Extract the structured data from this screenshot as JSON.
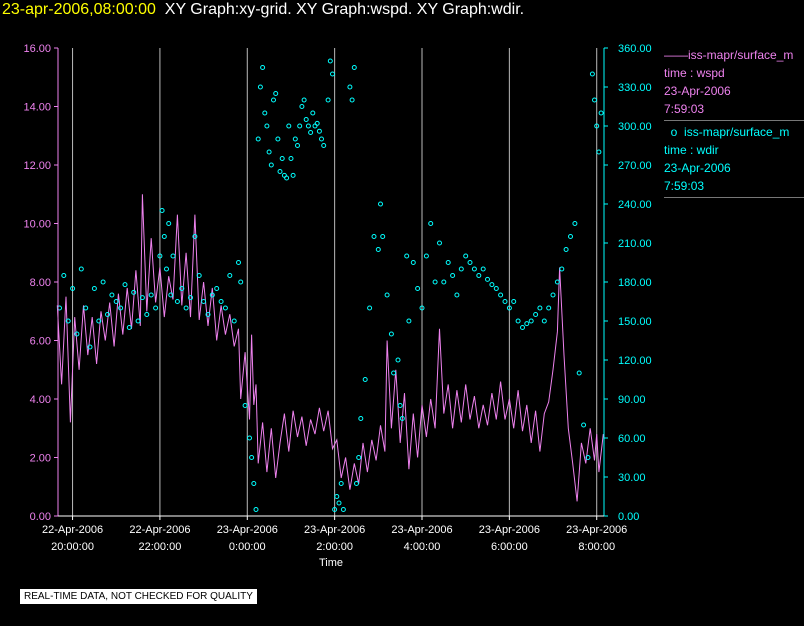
{
  "header": {
    "timestamp": "23-apr-2006,08:00:00",
    "graphs": "XY Graph:xy-grid.  XY Graph:wspd.  XY Graph:wdir."
  },
  "legend": [
    {
      "marker": "——",
      "source": "iss-mapr/surface_m",
      "var_line": "time : wspd",
      "date": "23-Apr-2006",
      "time": "7:59:03",
      "color": "#ee82ee"
    },
    {
      "marker": "o",
      "source": "iss-mapr/surface_m",
      "var_line": "time : wdir",
      "date": "23-Apr-2006",
      "time": "7:59:03",
      "color": "#00ffff"
    }
  ],
  "disclaimer": "REAL-TIME DATA, NOT CHECKED FOR QUALITY",
  "colors": {
    "wspd": "#ee82ee",
    "wdir": "#00ffff",
    "grid": "#bbbbbb",
    "axis_text": "#ffffff"
  },
  "chart_data": {
    "type": "line",
    "xlabel": "Time",
    "x_range": [
      "2006-04-22 19:40",
      "2006-04-23 08:10"
    ],
    "x_ticks": [
      {
        "t": "2006-04-22 20:00",
        "date": "22-Apr-2006",
        "time": "20:00:00"
      },
      {
        "t": "2006-04-22 22:00",
        "date": "22-Apr-2006",
        "time": "22:00:00"
      },
      {
        "t": "2006-04-23 00:00",
        "date": "23-Apr-2006",
        "time": "0:00:00"
      },
      {
        "t": "2006-04-23 02:00",
        "date": "23-Apr-2006",
        "time": "2:00:00"
      },
      {
        "t": "2006-04-23 04:00",
        "date": "23-Apr-2006",
        "time": "4:00:00"
      },
      {
        "t": "2006-04-23 06:00",
        "date": "23-Apr-2006",
        "time": "6:00:00"
      },
      {
        "t": "2006-04-23 08:00",
        "date": "23-Apr-2006",
        "time": "8:00:00"
      }
    ],
    "y_left": {
      "range": [
        0,
        16
      ],
      "ticks": [
        "0.00",
        "2.00",
        "4.00",
        "6.00",
        "8.00",
        "10.00",
        "12.00",
        "14.00",
        "16.00"
      ]
    },
    "y_right": {
      "range": [
        0,
        360
      ],
      "ticks": [
        "0.00",
        "30.00",
        "60.00",
        "90.00",
        "120.00",
        "150.00",
        "180.00",
        "210.00",
        "240.00",
        "270.00",
        "300.00",
        "330.00",
        "360.00"
      ]
    },
    "grid": "vertical lines at x ticks",
    "series": [
      {
        "key": "wspd",
        "axis": "left",
        "style": "line",
        "x_unit": "hours since 2006-04-22 20:00",
        "points": [
          [
            -0.35,
            7.2
          ],
          [
            -0.25,
            4.5
          ],
          [
            -0.15,
            7.5
          ],
          [
            -0.05,
            3.2
          ],
          [
            0.05,
            6.8
          ],
          [
            0.15,
            5.0
          ],
          [
            0.25,
            7.2
          ],
          [
            0.35,
            5.5
          ],
          [
            0.45,
            6.8
          ],
          [
            0.55,
            5.2
          ],
          [
            0.65,
            7.0
          ],
          [
            0.75,
            6.0
          ],
          [
            0.85,
            7.3
          ],
          [
            0.95,
            5.8
          ],
          [
            1.05,
            7.6
          ],
          [
            1.15,
            6.2
          ],
          [
            1.25,
            7.8
          ],
          [
            1.35,
            6.4
          ],
          [
            1.45,
            8.4
          ],
          [
            1.55,
            6.5
          ],
          [
            1.6,
            11.0
          ],
          [
            1.7,
            7.0
          ],
          [
            1.8,
            9.5
          ],
          [
            1.9,
            7.3
          ],
          [
            2.0,
            8.5
          ],
          [
            2.1,
            6.8
          ],
          [
            2.2,
            8.2
          ],
          [
            2.3,
            7.4
          ],
          [
            2.4,
            10.3
          ],
          [
            2.5,
            7.2
          ],
          [
            2.6,
            9.0
          ],
          [
            2.7,
            6.8
          ],
          [
            2.8,
            10.3
          ],
          [
            2.9,
            6.7
          ],
          [
            3.0,
            8.0
          ],
          [
            3.1,
            6.5
          ],
          [
            3.2,
            7.8
          ],
          [
            3.3,
            6.0
          ],
          [
            3.4,
            7.2
          ],
          [
            3.5,
            6.2
          ],
          [
            3.6,
            6.9
          ],
          [
            3.7,
            5.8
          ],
          [
            3.8,
            6.4
          ],
          [
            3.85,
            4.0
          ],
          [
            3.95,
            5.6
          ],
          [
            4.05,
            3.3
          ],
          [
            4.1,
            6.2
          ],
          [
            4.15,
            3.8
          ],
          [
            4.2,
            4.5
          ],
          [
            4.25,
            1.8
          ],
          [
            4.35,
            3.2
          ],
          [
            4.45,
            1.5
          ],
          [
            4.55,
            3.0
          ],
          [
            4.65,
            1.3
          ],
          [
            4.75,
            2.5
          ],
          [
            4.85,
            3.5
          ],
          [
            4.95,
            2.2
          ],
          [
            5.05,
            3.6
          ],
          [
            5.15,
            2.7
          ],
          [
            5.25,
            3.4
          ],
          [
            5.35,
            2.4
          ],
          [
            5.45,
            3.3
          ],
          [
            5.55,
            2.8
          ],
          [
            5.65,
            3.7
          ],
          [
            5.75,
            2.9
          ],
          [
            5.85,
            3.6
          ],
          [
            5.95,
            2.3
          ],
          [
            6.05,
            2.6
          ],
          [
            6.15,
            1.3
          ],
          [
            6.25,
            2.0
          ],
          [
            6.35,
            0.9
          ],
          [
            6.45,
            1.8
          ],
          [
            6.55,
            1.1
          ],
          [
            6.65,
            2.5
          ],
          [
            6.75,
            1.5
          ],
          [
            6.85,
            2.6
          ],
          [
            6.95,
            1.9
          ],
          [
            7.05,
            3.1
          ],
          [
            7.15,
            2.2
          ],
          [
            7.2,
            6.0
          ],
          [
            7.3,
            3.0
          ],
          [
            7.4,
            5.0
          ],
          [
            7.5,
            2.5
          ],
          [
            7.6,
            4.2
          ],
          [
            7.7,
            1.6
          ],
          [
            7.8,
            3.5
          ],
          [
            7.9,
            2.0
          ],
          [
            8.0,
            3.8
          ],
          [
            8.1,
            2.7
          ],
          [
            8.2,
            4.0
          ],
          [
            8.3,
            3.0
          ],
          [
            8.4,
            6.4
          ],
          [
            8.5,
            3.5
          ],
          [
            8.6,
            4.5
          ],
          [
            8.7,
            3.0
          ],
          [
            8.8,
            4.3
          ],
          [
            8.9,
            3.2
          ],
          [
            9.0,
            4.5
          ],
          [
            9.1,
            3.3
          ],
          [
            9.2,
            4.1
          ],
          [
            9.3,
            3.0
          ],
          [
            9.4,
            3.8
          ],
          [
            9.5,
            3.1
          ],
          [
            9.6,
            4.2
          ],
          [
            9.7,
            3.3
          ],
          [
            9.8,
            4.6
          ],
          [
            9.9,
            3.3
          ],
          [
            10.0,
            4.0
          ],
          [
            10.1,
            3.0
          ],
          [
            10.2,
            4.3
          ],
          [
            10.3,
            2.9
          ],
          [
            10.4,
            3.8
          ],
          [
            10.5,
            2.5
          ],
          [
            10.6,
            3.6
          ],
          [
            10.7,
            2.2
          ],
          [
            10.8,
            3.5
          ],
          [
            10.9,
            3.9
          ],
          [
            11.0,
            5.0
          ],
          [
            11.1,
            6.3
          ],
          [
            11.15,
            8.5
          ],
          [
            11.25,
            5.5
          ],
          [
            11.35,
            3.0
          ],
          [
            11.45,
            1.8
          ],
          [
            11.55,
            0.5
          ],
          [
            11.65,
            2.5
          ],
          [
            11.75,
            1.8
          ],
          [
            11.85,
            3.0
          ],
          [
            11.95,
            1.9
          ],
          [
            12.0,
            2.8
          ],
          [
            12.05,
            1.5
          ],
          [
            12.15,
            2.8
          ]
        ]
      },
      {
        "key": "wdir",
        "axis": "right",
        "style": "markers",
        "x_unit": "hours since 2006-04-22 20:00",
        "points": [
          [
            -0.3,
            160
          ],
          [
            -0.2,
            185
          ],
          [
            -0.1,
            150
          ],
          [
            0.0,
            175
          ],
          [
            0.1,
            140
          ],
          [
            0.2,
            190
          ],
          [
            0.3,
            160
          ],
          [
            0.4,
            130
          ],
          [
            0.5,
            175
          ],
          [
            0.6,
            150
          ],
          [
            0.7,
            180
          ],
          [
            0.8,
            155
          ],
          [
            0.9,
            170
          ],
          [
            1.0,
            165
          ],
          [
            1.1,
            160
          ],
          [
            1.2,
            178
          ],
          [
            1.3,
            145
          ],
          [
            1.4,
            172
          ],
          [
            1.5,
            150
          ],
          [
            1.6,
            168
          ],
          [
            1.7,
            155
          ],
          [
            1.8,
            170
          ],
          [
            1.9,
            160
          ],
          [
            2.0,
            200
          ],
          [
            2.05,
            235
          ],
          [
            2.1,
            215
          ],
          [
            2.15,
            190
          ],
          [
            2.2,
            225
          ],
          [
            2.25,
            170
          ],
          [
            2.3,
            200
          ],
          [
            2.4,
            165
          ],
          [
            2.5,
            175
          ],
          [
            2.6,
            160
          ],
          [
            2.7,
            168
          ],
          [
            2.8,
            215
          ],
          [
            2.9,
            185
          ],
          [
            3.0,
            165
          ],
          [
            3.1,
            155
          ],
          [
            3.2,
            170
          ],
          [
            3.3,
            175
          ],
          [
            3.4,
            165
          ],
          [
            3.5,
            160
          ],
          [
            3.6,
            185
          ],
          [
            3.7,
            150
          ],
          [
            3.8,
            195
          ],
          [
            3.85,
            180
          ],
          [
            3.95,
            85
          ],
          [
            4.05,
            60
          ],
          [
            4.1,
            45
          ],
          [
            4.15,
            25
          ],
          [
            4.2,
            5
          ],
          [
            4.25,
            290
          ],
          [
            4.3,
            330
          ],
          [
            4.35,
            345
          ],
          [
            4.4,
            310
          ],
          [
            4.45,
            300
          ],
          [
            4.5,
            280
          ],
          [
            4.55,
            270
          ],
          [
            4.6,
            320
          ],
          [
            4.65,
            325
          ],
          [
            4.7,
            290
          ],
          [
            4.75,
            265
          ],
          [
            4.8,
            275
          ],
          [
            4.85,
            262
          ],
          [
            4.9,
            260
          ],
          [
            4.95,
            300
          ],
          [
            5.0,
            275
          ],
          [
            5.05,
            262
          ],
          [
            5.1,
            290
          ],
          [
            5.15,
            285
          ],
          [
            5.2,
            300
          ],
          [
            5.25,
            315
          ],
          [
            5.3,
            320
          ],
          [
            5.35,
            305
          ],
          [
            5.4,
            300
          ],
          [
            5.45,
            295
          ],
          [
            5.5,
            310
          ],
          [
            5.55,
            300
          ],
          [
            5.6,
            302
          ],
          [
            5.65,
            296
          ],
          [
            5.7,
            290
          ],
          [
            5.75,
            285
          ],
          [
            5.85,
            320
          ],
          [
            5.9,
            350
          ],
          [
            5.95,
            340
          ],
          [
            6.0,
            5
          ],
          [
            6.05,
            15
          ],
          [
            6.1,
            10
          ],
          [
            6.15,
            25
          ],
          [
            6.2,
            5
          ],
          [
            6.35,
            330
          ],
          [
            6.4,
            320
          ],
          [
            6.45,
            345
          ],
          [
            6.5,
            25
          ],
          [
            6.55,
            45
          ],
          [
            6.6,
            75
          ],
          [
            6.7,
            105
          ],
          [
            6.8,
            160
          ],
          [
            6.9,
            215
          ],
          [
            7.0,
            205
          ],
          [
            7.05,
            240
          ],
          [
            7.1,
            215
          ],
          [
            7.2,
            170
          ],
          [
            7.3,
            140
          ],
          [
            7.35,
            110
          ],
          [
            7.45,
            120
          ],
          [
            7.5,
            85
          ],
          [
            7.55,
            75
          ],
          [
            7.65,
            200
          ],
          [
            7.7,
            150
          ],
          [
            7.8,
            195
          ],
          [
            7.9,
            175
          ],
          [
            8.0,
            160
          ],
          [
            8.1,
            200
          ],
          [
            8.2,
            225
          ],
          [
            8.3,
            180
          ],
          [
            8.4,
            210
          ],
          [
            8.5,
            180
          ],
          [
            8.6,
            195
          ],
          [
            8.7,
            185
          ],
          [
            8.8,
            170
          ],
          [
            8.9,
            190
          ],
          [
            9.0,
            200
          ],
          [
            9.1,
            195
          ],
          [
            9.2,
            190
          ],
          [
            9.3,
            185
          ],
          [
            9.4,
            190
          ],
          [
            9.5,
            182
          ],
          [
            9.6,
            178
          ],
          [
            9.7,
            175
          ],
          [
            9.8,
            170
          ],
          [
            9.9,
            165
          ],
          [
            10.0,
            160
          ],
          [
            10.1,
            165
          ],
          [
            10.2,
            150
          ],
          [
            10.3,
            145
          ],
          [
            10.4,
            148
          ],
          [
            10.5,
            150
          ],
          [
            10.6,
            155
          ],
          [
            10.7,
            160
          ],
          [
            10.8,
            150
          ],
          [
            10.9,
            160
          ],
          [
            11.0,
            170
          ],
          [
            11.1,
            180
          ],
          [
            11.2,
            190
          ],
          [
            11.3,
            205
          ],
          [
            11.4,
            215
          ],
          [
            11.5,
            225
          ],
          [
            11.6,
            110
          ],
          [
            11.7,
            70
          ],
          [
            11.8,
            45
          ],
          [
            11.9,
            340
          ],
          [
            11.95,
            320
          ],
          [
            12.0,
            300
          ],
          [
            12.05,
            280
          ],
          [
            12.1,
            310
          ]
        ]
      }
    ]
  }
}
